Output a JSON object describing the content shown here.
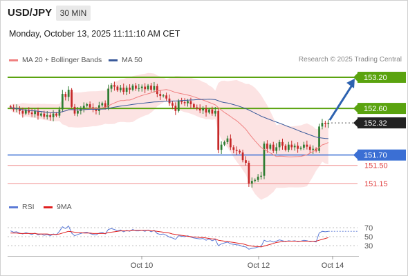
{
  "header": {
    "symbol": "USD/JPY",
    "timeframe": "30 MIN",
    "datetime": "Monday, October 13, 2025 11:11:10 AM CET",
    "credit": "Research © 2025 Trading Central"
  },
  "legend": {
    "ma20": {
      "label": "MA 20 + Bollinger Bands",
      "color": "#f08080"
    },
    "ma50": {
      "label": "MA 50",
      "color": "#3a5a9a"
    }
  },
  "rsi_legend": {
    "rsi": {
      "label": "RSI",
      "color": "#5b7ad6"
    },
    "ma": {
      "label": "9MA",
      "color": "#e02020"
    }
  },
  "colors": {
    "bull": "#2e7d32",
    "bear": "#c62828",
    "resistance": "#5aa30f",
    "pivot": "#3b6fd4",
    "support": "#f08c8c",
    "band_fill": "#fbd9d9",
    "arrow": "#2d62b0",
    "current": "#222222"
  },
  "chart_data": [
    {
      "type": "candlestick",
      "title": "USD/JPY",
      "timeframe": "30 MIN",
      "ylim": [
        150.95,
        153.4
      ],
      "x_ticks": [
        "Oct 10",
        "Oct 12",
        "Oct 14"
      ],
      "levels": [
        {
          "value": 153.2,
          "label": "153.20",
          "kind": "resistance"
        },
        {
          "value": 152.6,
          "label": "152.60",
          "kind": "resistance"
        },
        {
          "value": 152.32,
          "label": "152.32",
          "kind": "current"
        },
        {
          "value": 151.7,
          "label": "151.70",
          "kind": "pivot"
        },
        {
          "value": 151.5,
          "label": "151.50",
          "kind": "support"
        },
        {
          "value": 151.15,
          "label": "151.15",
          "kind": "support"
        }
      ],
      "indicators": [
        "MA 20 + Bollinger Bands",
        "MA 50"
      ],
      "forecast_target": 153.2,
      "close_series": [
        152.62,
        152.58,
        152.6,
        152.55,
        152.5,
        152.57,
        152.52,
        152.49,
        152.55,
        152.46,
        152.5,
        152.44,
        152.47,
        152.43,
        152.5,
        152.46,
        152.58,
        152.88,
        152.82,
        152.96,
        152.63,
        152.5,
        152.55,
        152.6,
        152.65,
        152.68,
        152.62,
        152.58,
        152.55,
        152.66,
        152.7,
        152.62,
        152.98,
        153.05,
        153.02,
        152.95,
        153.0,
        152.92,
        153.0,
        152.96,
        153.04,
        152.98,
        152.99,
        153.02,
        152.97,
        153.04,
        152.96,
        153.03,
        152.88,
        152.84,
        152.85,
        152.79,
        152.7,
        152.65,
        152.55,
        152.75,
        152.72,
        152.7,
        152.74,
        152.68,
        152.62,
        152.6,
        152.56,
        152.6,
        152.52,
        152.58,
        152.5,
        152.55,
        151.8,
        151.9,
        151.95,
        152.02,
        151.85,
        151.8,
        151.78,
        151.75,
        151.6,
        151.55,
        151.15,
        151.2,
        151.22,
        151.28,
        151.3,
        151.92,
        151.82,
        151.9,
        151.78,
        151.85,
        151.95,
        151.88,
        151.8,
        151.9,
        151.85,
        151.88,
        151.82,
        151.84,
        151.9,
        151.86,
        151.8,
        151.82,
        151.78,
        152.25,
        152.32,
        152.3,
        152.32
      ],
      "rsi": {
        "levels": [
          70,
          50,
          30
        ],
        "ylim": [
          10,
          90
        ],
        "values": [
          63,
          60,
          61,
          58,
          56,
          59,
          57,
          55,
          58,
          54,
          56,
          53,
          55,
          52,
          56,
          54,
          62,
          72,
          68,
          74,
          58,
          52,
          55,
          57,
          59,
          60,
          57,
          55,
          54,
          58,
          60,
          56,
          66,
          68,
          66,
          63,
          65,
          61,
          64,
          62,
          66,
          63,
          63,
          64,
          62,
          65,
          61,
          64,
          57,
          55,
          56,
          53,
          49,
          47,
          44,
          52,
          51,
          50,
          52,
          49,
          47,
          46,
          45,
          46,
          42,
          45,
          41,
          44,
          30,
          34,
          36,
          38,
          34,
          33,
          32,
          31,
          28,
          27,
          22,
          24,
          25,
          27,
          28,
          42,
          39,
          41,
          38,
          40,
          43,
          41,
          39,
          41,
          40,
          41,
          39,
          40,
          42,
          41,
          39,
          40,
          38,
          58,
          62,
          61,
          62
        ],
        "ma": [
          58,
          58,
          58,
          57,
          57,
          57,
          57,
          57,
          57,
          56,
          56,
          56,
          56,
          55,
          55,
          55,
          56,
          58,
          60,
          62,
          61,
          60,
          59,
          59,
          58,
          58,
          58,
          57,
          57,
          57,
          57,
          57,
          59,
          60,
          61,
          62,
          63,
          63,
          63,
          63,
          64,
          64,
          64,
          64,
          64,
          64,
          63,
          63,
          62,
          61,
          60,
          59,
          58,
          56,
          55,
          54,
          53,
          52,
          51,
          50,
          49,
          49,
          48,
          48,
          47,
          46,
          45,
          45,
          42,
          41,
          40,
          39,
          38,
          37,
          36,
          35,
          34,
          32,
          30,
          29,
          28,
          28,
          27,
          29,
          31,
          33,
          35,
          37,
          38,
          39,
          40,
          40,
          40,
          40,
          40,
          40,
          40,
          40,
          40,
          40,
          40,
          42,
          44,
          46,
          48
        ]
      }
    }
  ]
}
